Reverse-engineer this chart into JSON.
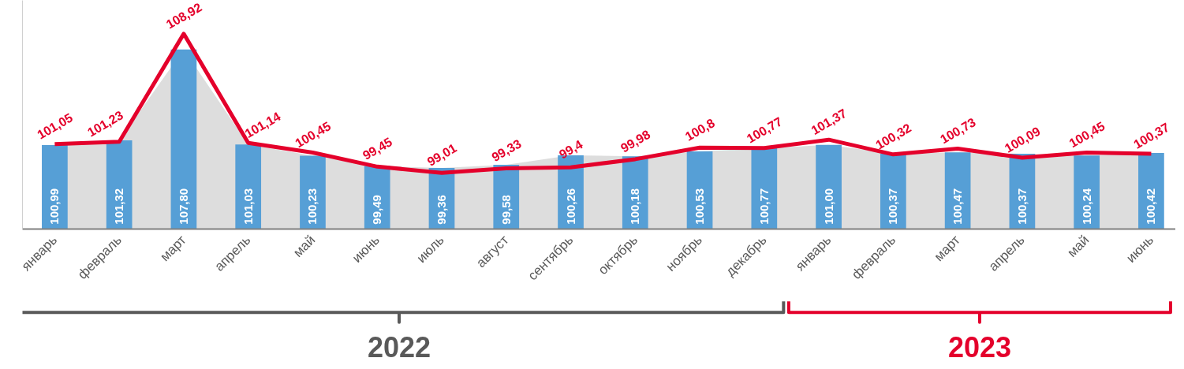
{
  "chart_data": {
    "type": "bar",
    "categories": [
      "январь",
      "февраль",
      "март",
      "апрель",
      "май",
      "июнь",
      "июль",
      "август",
      "сентябрь",
      "октябрь",
      "ноябрь",
      "декабрь",
      "январь",
      "февраль",
      "март",
      "апрель",
      "май",
      "июнь"
    ],
    "ylim": [
      95,
      111.3
    ],
    "tick_labels": "x",
    "grid": false,
    "series": [
      {
        "type": "area",
        "color": "#d9d9d9",
        "values": [
          100.99,
          101.32,
          107.8,
          101.03,
          100.23,
          99.49,
          99.36,
          99.58,
          100.26,
          100.18,
          100.53,
          100.77,
          101.0,
          100.37,
          100.47,
          100.37,
          100.24,
          100.42
        ]
      },
      {
        "color": "#569fd6",
        "values": [
          100.99,
          101.32,
          107.8,
          101.03,
          100.23,
          99.49,
          99.36,
          99.58,
          100.26,
          100.18,
          100.53,
          100.77,
          101.0,
          100.37,
          100.47,
          100.37,
          100.24,
          100.42
        ],
        "value_labels": [
          "100,99",
          "101,32",
          "107,80",
          "101,03",
          "100,23",
          "99,49",
          "99,36",
          "99,58",
          "100,26",
          "100,18",
          "100,53",
          "100,77",
          "101,00",
          "100,37",
          "100,47",
          "100,37",
          "100,24",
          "100,42"
        ]
      },
      {
        "type": "line",
        "color": "#e4002b",
        "values": [
          101.05,
          101.23,
          108.92,
          101.14,
          100.45,
          99.45,
          99.01,
          99.33,
          99.4,
          99.98,
          100.8,
          100.77,
          101.37,
          100.32,
          100.73,
          100.09,
          100.45,
          100.37
        ],
        "value_labels": [
          "101,05",
          "101,23",
          "108,92",
          "101,14",
          "100,45",
          "99,45",
          "99,01",
          "99,33",
          "99,4",
          "99,98",
          "100,8",
          "100,77",
          "101,37",
          "100,32",
          "100,73",
          "100,09",
          "100,45",
          "100,37"
        ]
      }
    ],
    "annotations": [
      "2022",
      "2023"
    ]
  }
}
